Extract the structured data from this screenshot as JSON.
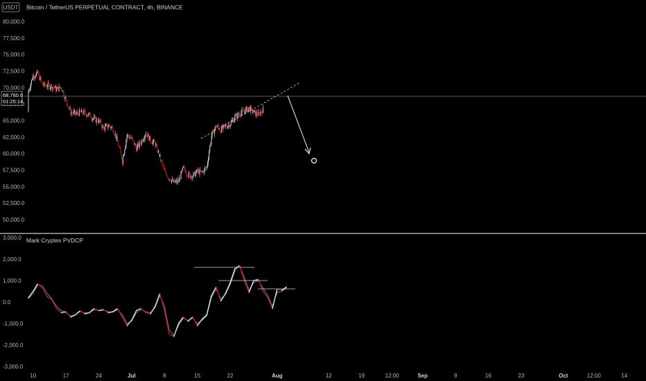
{
  "currency_badge": "USDT",
  "title": "Bitcoin / TetherUS PERPETUAL CONTRACT, 4h, BINANCE",
  "last_price": "68,760.6",
  "countdown": "01:25:14",
  "indicator_title": "Mark Cryptex PVDCP",
  "colors": {
    "up": "#d1d4dc",
    "down": "#b71c1c",
    "background": "#000000",
    "divider": "#ffffff"
  },
  "x_ticks": [
    {
      "label": "10",
      "day": 10,
      "bold": false
    },
    {
      "label": "17",
      "day": 17,
      "bold": false
    },
    {
      "label": "24",
      "day": 24,
      "bold": false
    },
    {
      "label": "Jul",
      "day": 31,
      "bold": true
    },
    {
      "label": "8",
      "day": 38,
      "bold": false
    },
    {
      "label": "15",
      "day": 45,
      "bold": false
    },
    {
      "label": "22",
      "day": 52,
      "bold": false
    },
    {
      "label": "Aug",
      "day": 62,
      "bold": true
    },
    {
      "label": "12",
      "day": 73,
      "bold": false
    },
    {
      "label": "19",
      "day": 80,
      "bold": false
    },
    {
      "label": "12:00",
      "day": 86.5,
      "bold": false
    },
    {
      "label": "Sep",
      "day": 93,
      "bold": true
    },
    {
      "label": "9",
      "day": 100,
      "bold": false
    },
    {
      "label": "16",
      "day": 107,
      "bold": false
    },
    {
      "label": "23",
      "day": 114,
      "bold": false
    },
    {
      "label": "Oct",
      "day": 123,
      "bold": true
    },
    {
      "label": "12:00",
      "day": 129.5,
      "bold": false
    },
    {
      "label": "14",
      "day": 136,
      "bold": false
    }
  ],
  "chart_data": [
    {
      "type": "candlestick",
      "title": "Bitcoin / TetherUS PERPETUAL CONTRACT, 4h, BINANCE",
      "y_ticks": [
        "80,000.0",
        "77,500.0",
        "75,000.0",
        "72,500.0",
        "70,000.0",
        "67,500.0",
        "65,000.0",
        "62,500.0",
        "60,000.0",
        "57,500.0",
        "55,000.0",
        "52,500.0",
        "50,000.0"
      ],
      "ylim": [
        48500,
        81000
      ],
      "close_path": [
        [
          0,
          69500
        ],
        [
          1,
          71800
        ],
        [
          2,
          72100
        ],
        [
          3,
          70400
        ],
        [
          4,
          70300
        ],
        [
          5,
          70200
        ],
        [
          6,
          69700
        ],
        [
          7,
          70100
        ],
        [
          8,
          68000
        ],
        [
          9,
          66300
        ],
        [
          10,
          66000
        ],
        [
          11,
          66200
        ],
        [
          12,
          66200
        ],
        [
          13,
          65800
        ],
        [
          14,
          65200
        ],
        [
          15,
          64900
        ],
        [
          16,
          63800
        ],
        [
          17,
          64200
        ],
        [
          18,
          63800
        ],
        [
          19,
          61800
        ],
        [
          20,
          58900
        ],
        [
          21,
          62800
        ],
        [
          22,
          62200
        ],
        [
          23,
          60800
        ],
        [
          24,
          61700
        ],
        [
          25,
          63200
        ],
        [
          26,
          62000
        ],
        [
          27,
          61500
        ],
        [
          28,
          59500
        ],
        [
          29,
          57200
        ],
        [
          30,
          56300
        ],
        [
          31,
          55600
        ],
        [
          32,
          55800
        ],
        [
          33,
          57800
        ],
        [
          34,
          56800
        ],
        [
          35,
          56600
        ],
        [
          36,
          57300
        ],
        [
          37,
          57100
        ],
        [
          38,
          58000
        ],
        [
          39,
          62600
        ],
        [
          40,
          64200
        ],
        [
          41,
          63600
        ],
        [
          42,
          64100
        ],
        [
          43,
          64500
        ],
        [
          44,
          65500
        ],
        [
          45,
          66100
        ],
        [
          46,
          66400
        ],
        [
          47,
          66900
        ],
        [
          48,
          66200
        ],
        [
          49,
          65900
        ],
        [
          50,
          66700
        ],
        [
          51,
          66400
        ],
        [
          52,
          67200
        ],
        [
          53,
          68300
        ],
        [
          54,
          68700
        ]
      ]
    },
    {
      "type": "line",
      "title": "Mark Cryptex PVDCP",
      "y_ticks": [
        "3,000.0",
        "2,000.0",
        "1,000.0",
        "0.0",
        "-1,000.0",
        "-2,000.0",
        "-3,000.0"
      ],
      "ylim": [
        -3000,
        3000
      ],
      "series": [
        {
          "values": [
            [
              0,
              200
            ],
            [
              1,
              500
            ],
            [
              2,
              850
            ],
            [
              3,
              650
            ],
            [
              4,
              250
            ],
            [
              5,
              100
            ],
            [
              6,
              -300
            ],
            [
              7,
              -500
            ],
            [
              8,
              -450
            ],
            [
              9,
              -700
            ],
            [
              10,
              -600
            ],
            [
              11,
              -400
            ],
            [
              12,
              -550
            ],
            [
              13,
              -500
            ],
            [
              14,
              -300
            ],
            [
              15,
              -400
            ],
            [
              16,
              -350
            ],
            [
              17,
              -500
            ],
            [
              18,
              -450
            ],
            [
              19,
              -300
            ],
            [
              20,
              -700
            ],
            [
              21,
              -1100
            ],
            [
              22,
              -850
            ],
            [
              23,
              -400
            ],
            [
              24,
              -300
            ],
            [
              25,
              -500
            ],
            [
              26,
              -550
            ],
            [
              27,
              -200
            ],
            [
              28,
              400
            ],
            [
              29,
              -400
            ],
            [
              30,
              -1500
            ],
            [
              31,
              -1600
            ],
            [
              32,
              -1000
            ],
            [
              33,
              -700
            ],
            [
              34,
              -900
            ],
            [
              35,
              -700
            ],
            [
              36,
              -1100
            ],
            [
              37,
              -800
            ],
            [
              38,
              -600
            ],
            [
              39,
              300
            ],
            [
              40,
              700
            ],
            [
              41,
              50
            ],
            [
              42,
              400
            ],
            [
              43,
              900
            ],
            [
              44,
              1550
            ],
            [
              45,
              1700
            ],
            [
              46,
              1000
            ],
            [
              47,
              450
            ],
            [
              48,
              1000
            ],
            [
              49,
              1050
            ],
            [
              50,
              500
            ],
            [
              51,
              200
            ],
            [
              52,
              -300
            ],
            [
              53,
              600
            ],
            [
              54,
              550
            ],
            [
              55,
              700
            ]
          ]
        },
        {
          "values": [
            [
              0,
              150
            ],
            [
              1,
              400
            ],
            [
              2,
              800
            ],
            [
              3,
              750
            ],
            [
              4,
              400
            ],
            [
              5,
              150
            ],
            [
              6,
              -200
            ],
            [
              7,
              -400
            ],
            [
              8,
              -500
            ],
            [
              9,
              -650
            ],
            [
              10,
              -600
            ],
            [
              11,
              -450
            ],
            [
              12,
              -500
            ],
            [
              13,
              -500
            ],
            [
              14,
              -350
            ],
            [
              15,
              -400
            ],
            [
              16,
              -380
            ],
            [
              17,
              -450
            ],
            [
              18,
              -470
            ],
            [
              19,
              -350
            ],
            [
              20,
              -600
            ],
            [
              21,
              -1000
            ],
            [
              22,
              -900
            ],
            [
              23,
              -500
            ],
            [
              24,
              -350
            ],
            [
              25,
              -450
            ],
            [
              26,
              -500
            ],
            [
              27,
              -250
            ],
            [
              28,
              300
            ],
            [
              29,
              -200
            ],
            [
              30,
              -1300
            ],
            [
              31,
              -1550
            ],
            [
              32,
              -1100
            ],
            [
              33,
              -750
            ],
            [
              34,
              -850
            ],
            [
              35,
              -750
            ],
            [
              36,
              -1000
            ],
            [
              37,
              -850
            ],
            [
              38,
              -650
            ],
            [
              39,
              200
            ],
            [
              40,
              600
            ],
            [
              41,
              150
            ],
            [
              42,
              350
            ],
            [
              43,
              800
            ],
            [
              44,
              1450
            ],
            [
              45,
              1700
            ],
            [
              46,
              1150
            ],
            [
              47,
              550
            ],
            [
              48,
              900
            ],
            [
              49,
              1000
            ],
            [
              50,
              650
            ],
            [
              51,
              300
            ],
            [
              52,
              -200
            ],
            [
              53,
              450
            ],
            [
              54,
              500
            ],
            [
              55,
              650
            ]
          ]
        }
      ]
    }
  ]
}
